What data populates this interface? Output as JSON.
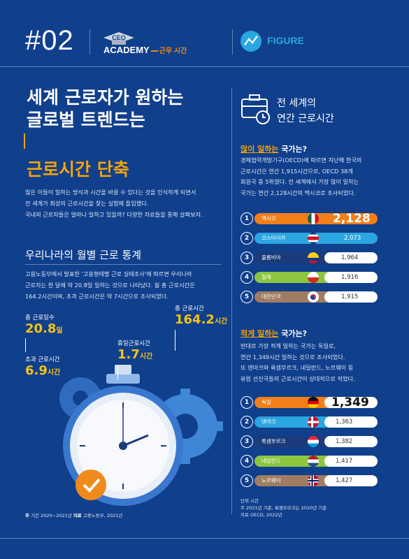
{
  "header": {
    "number": "#02",
    "badge": "CEO",
    "academy": "ACADEMY",
    "academy_sub": "근무 시간",
    "figure_label": "FIGURE"
  },
  "left": {
    "title_line1": "세계 근로자가 원하는",
    "title_line2": "글로벌 트렌드는",
    "title_highlight": "근로시간 단축",
    "intro": [
      "많은 이들이 일하는 방식과 시간을 바꿀 수 있다는 것을 인식하게 되면서",
      "전 세계가 최상의 근로시간을 찾는 실험에 돌입했다.",
      "국내외 근로자들은 얼마나 일하고 있을까? 다양한 자료들을 통해 살펴보자."
    ],
    "section_title": "우리나라의 월별 근로 통계",
    "section_body": [
      "고용노동부에서 발표한 '고용형태별 근로 실태조사'에 따르면 우리나라",
      "근로자는 한 달에 약 20.8일 일하는 것으로 나타났다. 월 총 근로시간은",
      "164.2시간이며, 초과 근로시간은 약 7시간으로 조사되었다."
    ],
    "stats": [
      {
        "label": "총 근로일수",
        "value": "20.8",
        "unit": "일"
      },
      {
        "label": "초과 근로시간",
        "value": "6.9",
        "unit": "시간"
      },
      {
        "label": "휴일근로시간",
        "value": "1.7",
        "unit": "시간"
      },
      {
        "label": "총 근로시간",
        "value": "164.2",
        "unit": "시간"
      }
    ],
    "note_prefix": "주",
    "note_period": "기간 2020~2021년",
    "note_source_label": "자료",
    "note_source": "고용노동부, 2021년"
  },
  "right": {
    "title_line1": "전 세계의",
    "title_line2": "연간 근로시간",
    "most_title_hl": "많이 일하는",
    "most_title_rest": "국가는?",
    "most_body": [
      "경제협력개발기구(OECD)에 따르면 지난해 한국의",
      "근로시간은 연간 1,915시간으로, OECD 38개",
      "회원국 중 5위였다. 전 세계에서 가장 많이 일하는",
      "국가는 연간 2,128시간의 멕시코로 조사되었다."
    ],
    "most": [
      {
        "rank": "1",
        "country": "멕시코",
        "value": "2,128",
        "color": "#f07f1a"
      },
      {
        "rank": "2",
        "country": "코스타리카",
        "value": "2,073",
        "color": "#2aa6e0"
      },
      {
        "rank": "3",
        "country": "콜롬비아",
        "value": "1,964",
        "color": "#1b3b7a"
      },
      {
        "rank": "4",
        "country": "칠레",
        "value": "1,916",
        "color": "#8cc63f"
      },
      {
        "rank": "5",
        "country": "대한민국",
        "value": "1,915",
        "color": "#a07d62"
      }
    ],
    "least_title_hl": "적게 일하는",
    "least_title_rest": "국가는?",
    "least_body": [
      "반대로 가장 적게 일하는 국가는 독일로,",
      "연간 1,349시간 일하는 것으로 조사되었다.",
      "또 덴마크와 룩셈부르크, 네덜란드, 노르웨이 등",
      "유럽 선진국들의 근로시간이 상대적으로 적었다."
    ],
    "least": [
      {
        "rank": "1",
        "country": "독일",
        "value": "1,349",
        "color": "#f07f1a"
      },
      {
        "rank": "2",
        "country": "덴마크",
        "value": "1,363",
        "color": "#2aa6e0"
      },
      {
        "rank": "3",
        "country": "룩셈부르크",
        "value": "1,382",
        "color": "#1b3b7a"
      },
      {
        "rank": "4",
        "country": "네덜란드",
        "value": "1,417",
        "color": "#8cc63f"
      },
      {
        "rank": "5",
        "country": "노르웨이",
        "value": "1,427",
        "color": "#a07d62"
      }
    ],
    "note_unit": "단위 시간",
    "note_line": "주 2021년 기준, 룩셈부르크는 2020년 기준",
    "note_source": "자료 OECD, 2022년"
  }
}
